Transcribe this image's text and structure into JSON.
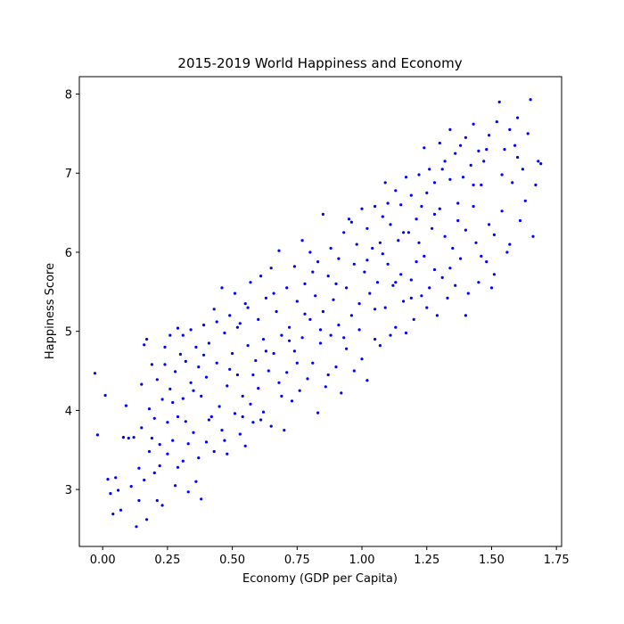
{
  "chart_data": {
    "type": "scatter",
    "title": "2015-2019 World Happiness and Economy",
    "xlabel": "Economy (GDP per Capita)",
    "ylabel": "Happiness Score",
    "xlim": [
      -0.09,
      1.77
    ],
    "ylim": [
      2.28,
      8.22
    ],
    "xticks": [
      0.0,
      0.25,
      0.5,
      0.75,
      1.0,
      1.25,
      1.5,
      1.75
    ],
    "xtick_labels": [
      "0.00",
      "0.25",
      "0.50",
      "0.75",
      "1.00",
      "1.25",
      "1.50",
      "1.75"
    ],
    "yticks": [
      3,
      4,
      5,
      6,
      7,
      8
    ],
    "ytick_labels": [
      "3",
      "4",
      "5",
      "6",
      "7",
      "8"
    ],
    "grid": false,
    "legend": "none",
    "marker_color": "#0000ff",
    "points": [
      [
        -0.03,
        4.47
      ],
      [
        -0.02,
        3.69
      ],
      [
        0.01,
        4.19
      ],
      [
        0.02,
        3.13
      ],
      [
        0.03,
        2.95
      ],
      [
        0.04,
        2.69
      ],
      [
        0.05,
        3.15
      ],
      [
        0.06,
        2.99
      ],
      [
        0.07,
        2.74
      ],
      [
        0.08,
        3.66
      ],
      [
        0.09,
        4.06
      ],
      [
        0.1,
        3.65
      ],
      [
        0.11,
        3.04
      ],
      [
        0.12,
        3.66
      ],
      [
        0.13,
        2.53
      ],
      [
        0.14,
        2.86
      ],
      [
        0.14,
        3.27
      ],
      [
        0.15,
        3.78
      ],
      [
        0.15,
        4.33
      ],
      [
        0.16,
        4.83
      ],
      [
        0.17,
        4.9
      ],
      [
        0.17,
        2.62
      ],
      [
        0.18,
        3.48
      ],
      [
        0.18,
        4.02
      ],
      [
        0.19,
        4.58
      ],
      [
        0.2,
        3.9
      ],
      [
        0.2,
        3.21
      ],
      [
        0.21,
        2.86
      ],
      [
        0.21,
        4.39
      ],
      [
        0.22,
        3.57
      ],
      [
        0.23,
        2.8
      ],
      [
        0.23,
        4.14
      ],
      [
        0.24,
        4.58
      ],
      [
        0.25,
        3.85
      ],
      [
        0.25,
        3.45
      ],
      [
        0.26,
        4.95
      ],
      [
        0.26,
        4.27
      ],
      [
        0.27,
        3.62
      ],
      [
        0.28,
        4.49
      ],
      [
        0.28,
        3.05
      ],
      [
        0.29,
        3.92
      ],
      [
        0.29,
        5.04
      ],
      [
        0.3,
        4.71
      ],
      [
        0.31,
        3.36
      ],
      [
        0.31,
        4.15
      ],
      [
        0.32,
        3.86
      ],
      [
        0.32,
        4.62
      ],
      [
        0.33,
        2.97
      ],
      [
        0.34,
        5.02
      ],
      [
        0.34,
        4.35
      ],
      [
        0.35,
        3.72
      ],
      [
        0.36,
        4.8
      ],
      [
        0.36,
        3.1
      ],
      [
        0.37,
        4.55
      ],
      [
        0.38,
        2.88
      ],
      [
        0.38,
        4.18
      ],
      [
        0.39,
        5.08
      ],
      [
        0.4,
        3.6
      ],
      [
        0.4,
        4.42
      ],
      [
        0.41,
        4.85
      ],
      [
        0.42,
        3.92
      ],
      [
        0.43,
        3.48
      ],
      [
        0.43,
        5.28
      ],
      [
        0.44,
        4.6
      ],
      [
        0.45,
        4.05
      ],
      [
        0.46,
        5.55
      ],
      [
        0.46,
        3.75
      ],
      [
        0.47,
        4.98
      ],
      [
        0.48,
        4.31
      ],
      [
        0.48,
        3.45
      ],
      [
        0.49,
        5.2
      ],
      [
        0.5,
        4.72
      ],
      [
        0.51,
        3.96
      ],
      [
        0.51,
        5.48
      ],
      [
        0.52,
        4.45
      ],
      [
        0.53,
        3.7
      ],
      [
        0.53,
        5.1
      ],
      [
        0.54,
        4.18
      ],
      [
        0.55,
        5.35
      ],
      [
        0.55,
        3.55
      ],
      [
        0.56,
        4.82
      ],
      [
        0.57,
        4.08
      ],
      [
        0.57,
        5.62
      ],
      [
        0.58,
        3.85
      ],
      [
        0.59,
        4.63
      ],
      [
        0.6,
        5.15
      ],
      [
        0.6,
        4.28
      ],
      [
        0.61,
        5.7
      ],
      [
        0.62,
        3.98
      ],
      [
        0.62,
        4.9
      ],
      [
        0.63,
        5.42
      ],
      [
        0.64,
        4.5
      ],
      [
        0.65,
        3.8
      ],
      [
        0.65,
        5.8
      ],
      [
        0.66,
        4.72
      ],
      [
        0.67,
        5.25
      ],
      [
        0.68,
        4.35
      ],
      [
        0.68,
        6.02
      ],
      [
        0.69,
        4.95
      ],
      [
        0.7,
        3.75
      ],
      [
        0.71,
        5.55
      ],
      [
        0.71,
        4.48
      ],
      [
        0.72,
        5.05
      ],
      [
        0.73,
        4.12
      ],
      [
        0.74,
        5.82
      ],
      [
        0.74,
        4.75
      ],
      [
        0.75,
        5.38
      ],
      [
        0.76,
        4.25
      ],
      [
        0.77,
        6.15
      ],
      [
        0.77,
        4.92
      ],
      [
        0.78,
        5.6
      ],
      [
        0.79,
        4.4
      ],
      [
        0.8,
        5.15
      ],
      [
        0.8,
        6.0
      ],
      [
        0.81,
        4.6
      ],
      [
        0.82,
        5.45
      ],
      [
        0.83,
        3.97
      ],
      [
        0.83,
        5.88
      ],
      [
        0.84,
        4.85
      ],
      [
        0.85,
        6.48
      ],
      [
        0.85,
        5.25
      ],
      [
        0.86,
        4.3
      ],
      [
        0.87,
        5.7
      ],
      [
        0.88,
        4.95
      ],
      [
        0.88,
        6.05
      ],
      [
        0.89,
        5.4
      ],
      [
        0.9,
        4.55
      ],
      [
        0.91,
        5.92
      ],
      [
        0.91,
        5.08
      ],
      [
        0.92,
        4.22
      ],
      [
        0.93,
        6.25
      ],
      [
        0.94,
        5.55
      ],
      [
        0.94,
        4.78
      ],
      [
        0.95,
        6.42
      ],
      [
        0.96,
        5.2
      ],
      [
        0.97,
        5.85
      ],
      [
        0.97,
        4.5
      ],
      [
        0.98,
        6.1
      ],
      [
        0.99,
        5.35
      ],
      [
        1.0,
        6.55
      ],
      [
        1.0,
        4.65
      ],
      [
        1.01,
        5.75
      ],
      [
        1.02,
        6.3
      ],
      [
        1.02,
        4.38
      ],
      [
        1.03,
        5.48
      ],
      [
        1.04,
        6.05
      ],
      [
        1.05,
        4.9
      ],
      [
        1.05,
        6.58
      ],
      [
        1.06,
        5.62
      ],
      [
        1.07,
        6.12
      ],
      [
        1.07,
        4.82
      ],
      [
        1.08,
        6.45
      ],
      [
        1.09,
        5.3
      ],
      [
        1.09,
        6.88
      ],
      [
        1.1,
        5.85
      ],
      [
        1.11,
        4.95
      ],
      [
        1.11,
        6.35
      ],
      [
        1.12,
        5.58
      ],
      [
        1.13,
        6.78
      ],
      [
        1.13,
        5.05
      ],
      [
        1.14,
        6.15
      ],
      [
        1.15,
        5.72
      ],
      [
        1.15,
        6.6
      ],
      [
        1.16,
        5.38
      ],
      [
        1.17,
        6.95
      ],
      [
        1.17,
        4.98
      ],
      [
        1.18,
        6.25
      ],
      [
        1.19,
        5.65
      ],
      [
        1.19,
        6.72
      ],
      [
        1.2,
        5.15
      ],
      [
        1.21,
        6.42
      ],
      [
        1.21,
        5.88
      ],
      [
        1.22,
        6.98
      ],
      [
        1.23,
        5.45
      ],
      [
        1.23,
        6.58
      ],
      [
        1.24,
        7.32
      ],
      [
        1.24,
        5.95
      ],
      [
        1.25,
        6.75
      ],
      [
        1.26,
        5.55
      ],
      [
        1.26,
        7.05
      ],
      [
        1.27,
        6.3
      ],
      [
        1.28,
        5.78
      ],
      [
        1.28,
        6.88
      ],
      [
        1.29,
        5.2
      ],
      [
        1.3,
        7.38
      ],
      [
        1.3,
        6.55
      ],
      [
        1.31,
        5.68
      ],
      [
        1.32,
        7.15
      ],
      [
        1.32,
        6.2
      ],
      [
        1.33,
        5.42
      ],
      [
        1.34,
        6.92
      ],
      [
        1.34,
        7.55
      ],
      [
        1.35,
        6.05
      ],
      [
        1.36,
        7.25
      ],
      [
        1.36,
        5.58
      ],
      [
        1.37,
        6.62
      ],
      [
        1.38,
        7.35
      ],
      [
        1.38,
        5.92
      ],
      [
        1.39,
        6.95
      ],
      [
        1.4,
        7.45
      ],
      [
        1.4,
        6.28
      ],
      [
        1.41,
        5.48
      ],
      [
        1.42,
        7.1
      ],
      [
        1.43,
        6.58
      ],
      [
        1.43,
        7.62
      ],
      [
        1.44,
        6.12
      ],
      [
        1.45,
        7.28
      ],
      [
        1.45,
        5.62
      ],
      [
        1.46,
        6.85
      ],
      [
        1.47,
        7.15
      ],
      [
        1.48,
        5.88
      ],
      [
        1.49,
        6.35
      ],
      [
        1.49,
        7.48
      ],
      [
        1.5,
        5.55
      ],
      [
        1.51,
        6.22
      ],
      [
        1.52,
        7.65
      ],
      [
        1.53,
        7.9
      ],
      [
        1.54,
        6.52
      ],
      [
        1.55,
        7.3
      ],
      [
        1.56,
        6.0
      ],
      [
        1.57,
        7.55
      ],
      [
        1.58,
        6.88
      ],
      [
        1.59,
        7.35
      ],
      [
        1.6,
        7.7
      ],
      [
        1.61,
        6.4
      ],
      [
        1.62,
        7.05
      ],
      [
        1.63,
        6.65
      ],
      [
        1.64,
        7.5
      ],
      [
        1.65,
        7.93
      ],
      [
        1.66,
        6.2
      ],
      [
        1.67,
        6.85
      ],
      [
        1.68,
        7.15
      ],
      [
        1.69,
        7.12
      ],
      [
        0.16,
        3.12
      ],
      [
        0.19,
        3.65
      ],
      [
        0.22,
        3.3
      ],
      [
        0.24,
        4.8
      ],
      [
        0.27,
        4.1
      ],
      [
        0.29,
        3.28
      ],
      [
        0.31,
        4.95
      ],
      [
        0.33,
        3.58
      ],
      [
        0.35,
        4.25
      ],
      [
        0.37,
        3.4
      ],
      [
        0.39,
        4.7
      ],
      [
        0.41,
        3.88
      ],
      [
        0.44,
        5.12
      ],
      [
        0.47,
        3.62
      ],
      [
        0.49,
        4.52
      ],
      [
        0.52,
        5.05
      ],
      [
        0.54,
        3.92
      ],
      [
        0.56,
        5.3
      ],
      [
        0.58,
        4.45
      ],
      [
        0.61,
        3.88
      ],
      [
        0.63,
        4.75
      ],
      [
        0.66,
        5.48
      ],
      [
        0.69,
        4.18
      ],
      [
        0.72,
        4.88
      ],
      [
        0.75,
        4.6
      ],
      [
        0.78,
        5.22
      ],
      [
        0.81,
        5.75
      ],
      [
        0.84,
        5.02
      ],
      [
        0.87,
        4.45
      ],
      [
        0.9,
        5.6
      ],
      [
        0.93,
        4.92
      ],
      [
        0.96,
        6.38
      ],
      [
        0.99,
        5.02
      ],
      [
        1.02,
        5.9
      ],
      [
        1.05,
        5.28
      ],
      [
        1.08,
        5.98
      ],
      [
        1.1,
        6.62
      ],
      [
        1.13,
        5.62
      ],
      [
        1.16,
        6.25
      ],
      [
        1.19,
        5.42
      ],
      [
        1.22,
        6.12
      ],
      [
        1.25,
        5.3
      ],
      [
        1.28,
        6.48
      ],
      [
        1.31,
        7.05
      ],
      [
        1.34,
        5.8
      ],
      [
        1.37,
        6.4
      ],
      [
        1.4,
        5.2
      ],
      [
        1.43,
        6.85
      ],
      [
        1.46,
        5.95
      ],
      [
        1.48,
        7.3
      ],
      [
        1.51,
        5.72
      ],
      [
        1.54,
        6.98
      ],
      [
        1.57,
        6.1
      ],
      [
        1.6,
        7.2
      ]
    ]
  }
}
